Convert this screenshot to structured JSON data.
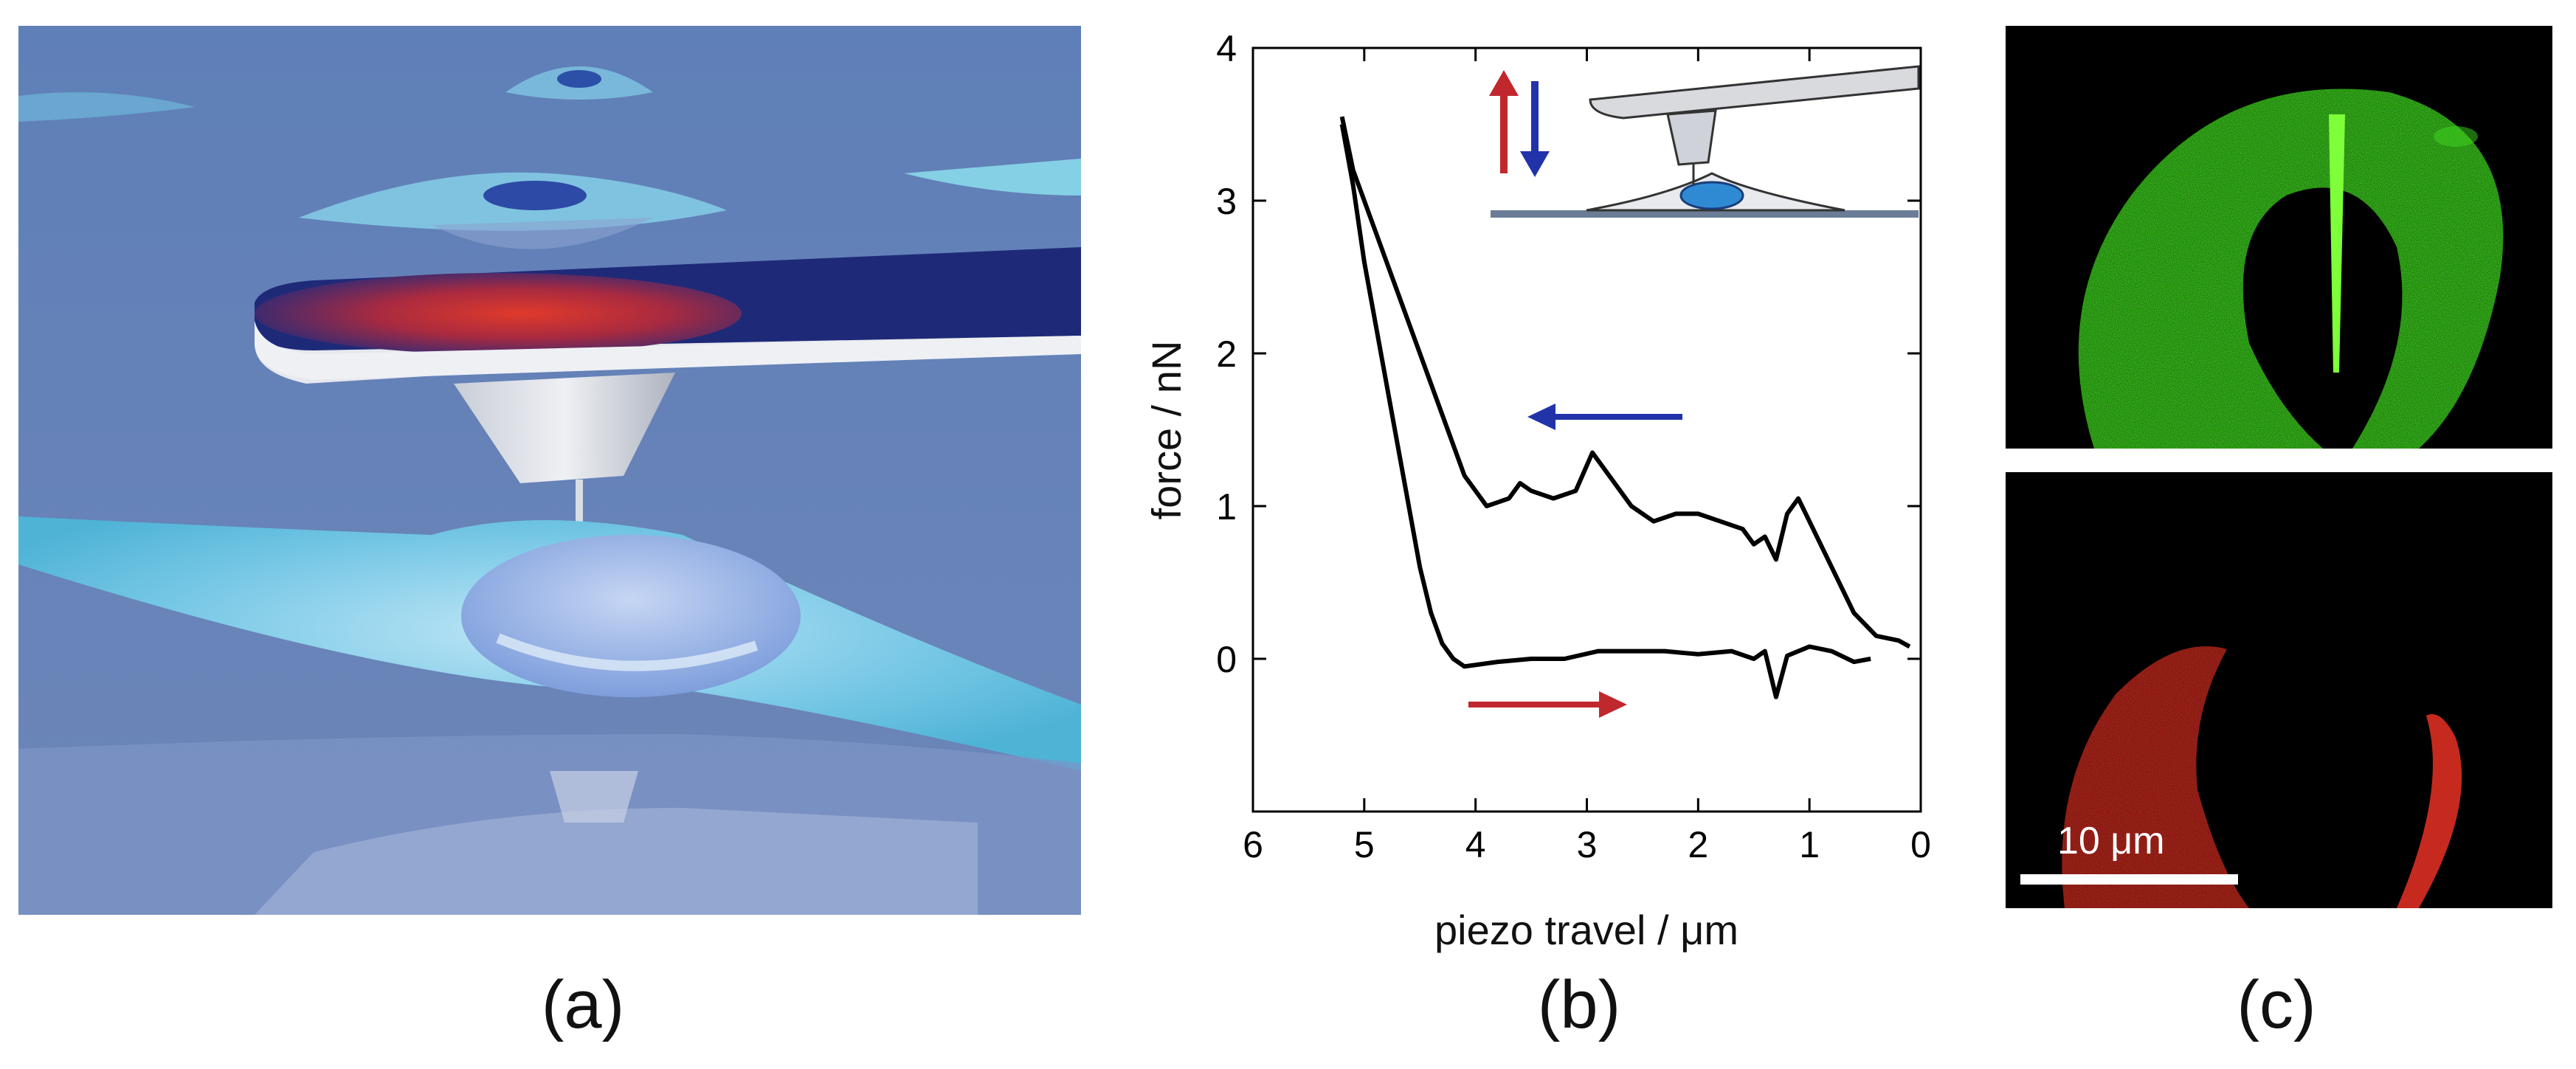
{
  "panel_captions": {
    "a": "(a)",
    "b": "(b)",
    "c": "(c)"
  },
  "panel_c": {
    "scale_bar_label": "10 μm"
  },
  "chart_data": {
    "type": "line",
    "xlabel": "piezo travel / μm",
    "ylabel": "force / nN",
    "xlim": [
      6,
      0
    ],
    "ylim": [
      -1,
      4
    ],
    "x_ticks": [
      6,
      5,
      4,
      3,
      2,
      1,
      0
    ],
    "y_ticks": [
      0,
      1,
      2,
      3,
      4
    ],
    "grid": false,
    "series": [
      {
        "direction": "approach",
        "x": [
          0.45,
          0.6,
          0.8,
          1.0,
          1.2,
          1.3,
          1.4,
          1.5,
          1.7,
          2.0,
          2.3,
          2.6,
          2.9,
          3.2,
          3.5,
          3.8,
          4.1,
          4.2,
          4.3,
          4.4,
          4.5,
          4.6,
          4.7,
          4.8,
          4.9,
          5.0,
          5.1,
          5.2
        ],
        "y": [
          0.0,
          -0.02,
          0.05,
          0.08,
          0.02,
          -0.25,
          0.05,
          0.0,
          0.05,
          0.03,
          0.05,
          0.05,
          0.05,
          0.0,
          0.0,
          -0.02,
          -0.05,
          0.0,
          0.1,
          0.3,
          0.6,
          1.0,
          1.4,
          1.8,
          2.2,
          2.6,
          3.1,
          3.5
        ]
      },
      {
        "direction": "retraction",
        "x": [
          0.1,
          0.2,
          0.4,
          0.6,
          0.8,
          1.0,
          1.1,
          1.2,
          1.3,
          1.4,
          1.5,
          1.6,
          1.8,
          2.0,
          2.2,
          2.4,
          2.6,
          2.8,
          2.95,
          3.1,
          3.3,
          3.5,
          3.6,
          3.7,
          3.9,
          4.1,
          4.3,
          4.5,
          4.7,
          4.9,
          5.1,
          5.2
        ],
        "y": [
          0.08,
          0.12,
          0.15,
          0.3,
          0.6,
          0.9,
          1.05,
          0.95,
          0.65,
          0.8,
          0.75,
          0.85,
          0.9,
          0.95,
          0.95,
          0.9,
          1.0,
          1.2,
          1.35,
          1.1,
          1.05,
          1.1,
          1.15,
          1.05,
          1.0,
          1.2,
          1.6,
          2.0,
          2.4,
          2.8,
          3.2,
          3.55
        ]
      }
    ],
    "annotations": {
      "approach_arrow_color": "#c0282d",
      "retraction_arrow_color": "#2233aa"
    }
  }
}
